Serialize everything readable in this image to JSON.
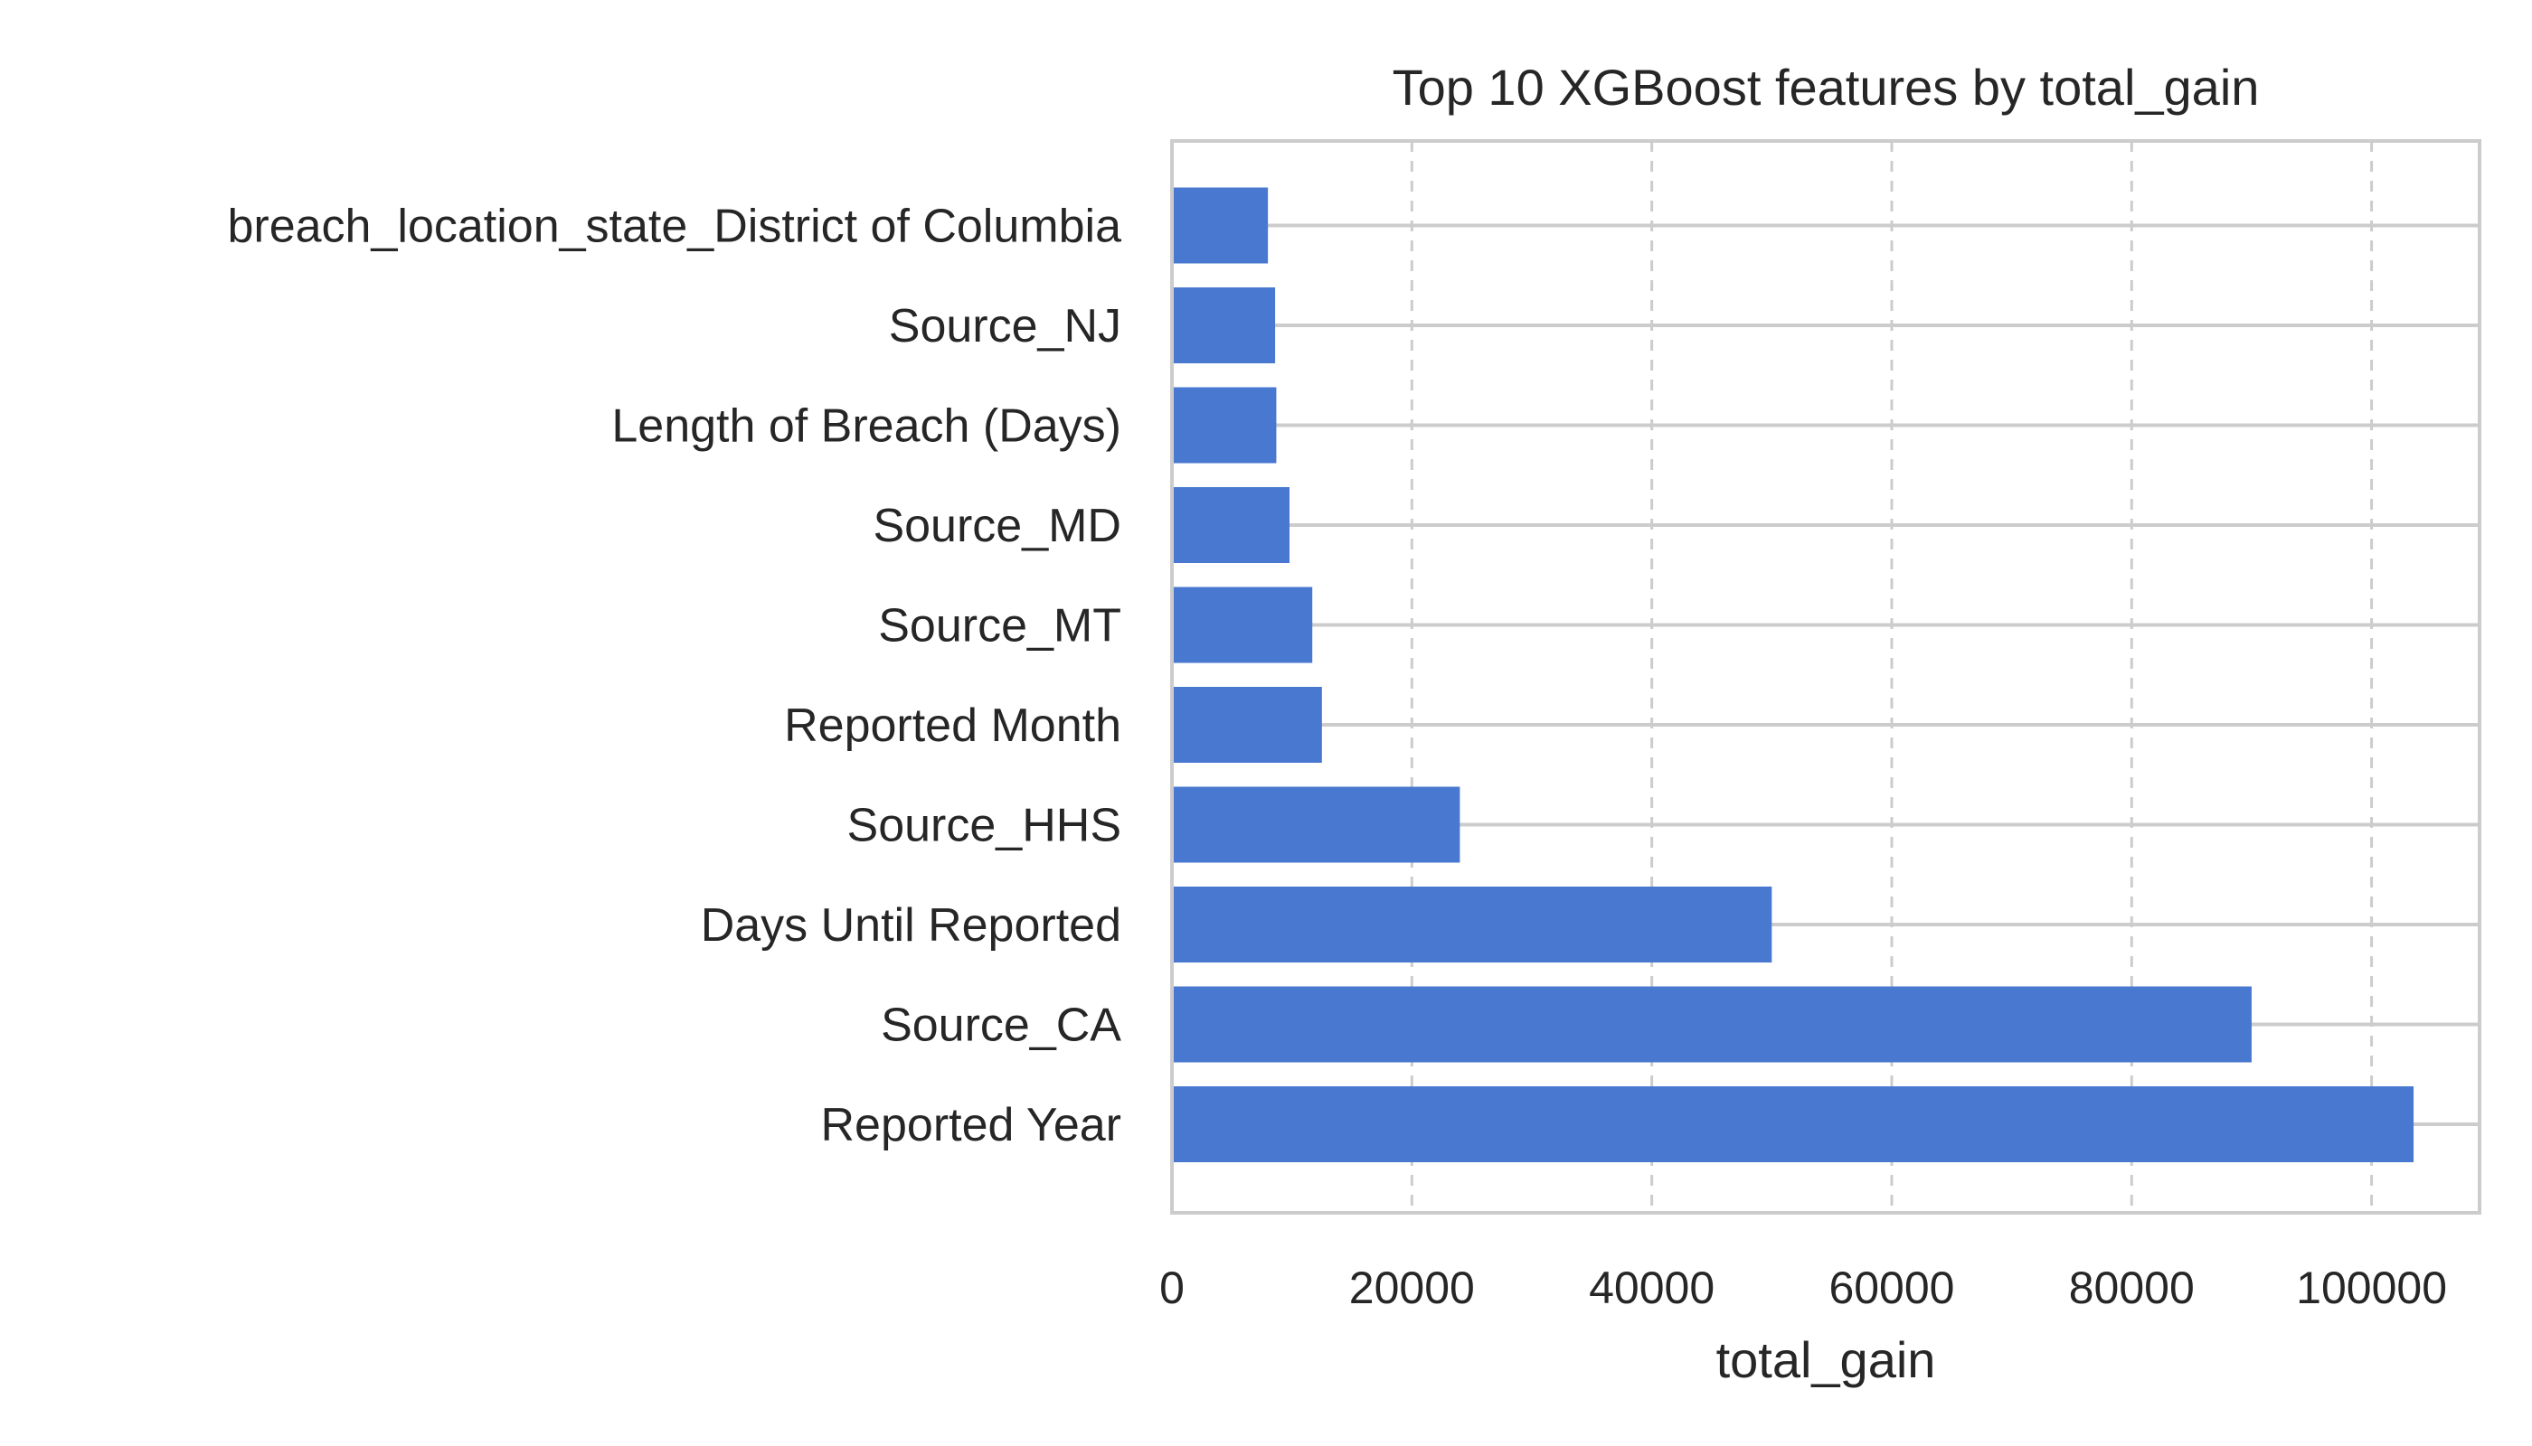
{
  "chart_data": {
    "type": "bar",
    "orientation": "horizontal",
    "title": "Top 10 XGBoost features by total_gain",
    "xlabel": "total_gain",
    "ylabel": "",
    "categories": [
      "Reported Year",
      "Source_CA",
      "Days Until Reported",
      "Source_HHS",
      "Reported Month",
      "Source_MT",
      "Source_MD",
      "Length of Breach (Days)",
      "Source_NJ",
      "breach_location_state_District of Columbia"
    ],
    "values": [
      103500,
      90000,
      50000,
      24000,
      12500,
      11700,
      9800,
      8700,
      8600,
      8000
    ],
    "xlim": [
      0,
      109000
    ],
    "xticks": [
      0,
      20000,
      40000,
      60000,
      80000,
      100000
    ],
    "xtick_labels": [
      "0",
      "20000",
      "40000",
      "60000",
      "80000",
      "100000"
    ],
    "grid": "vertical dashed, horizontal solid at categories",
    "bar_color": "#4878cf",
    "grid_color": "#cccccc",
    "spine_color": "#cccccc",
    "legend": "none"
  }
}
